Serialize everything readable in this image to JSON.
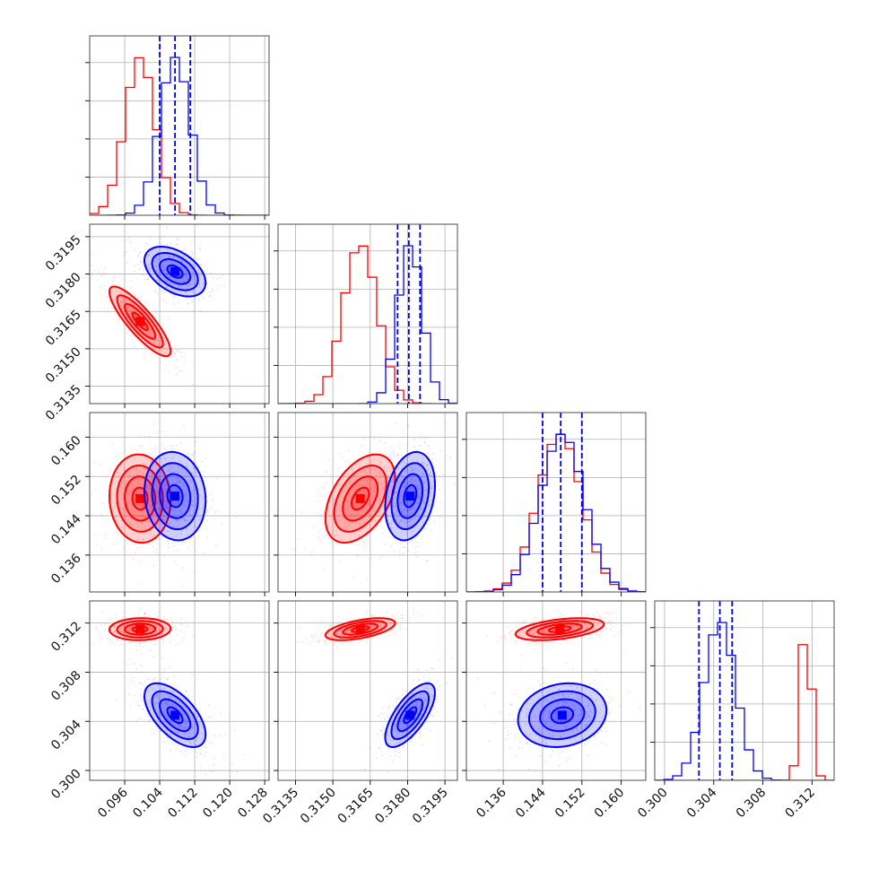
{
  "chart_data": {
    "type": "corner",
    "params": [
      {
        "range": [
          0.088,
          0.129
        ],
        "ticks": [
          "0.096",
          "0.104",
          "0.112",
          "0.120",
          "0.128"
        ]
      },
      {
        "range": [
          0.3128,
          0.32
        ],
        "ticks": [
          "0.3135",
          "0.3150",
          "0.3165",
          "0.3180",
          "0.3195"
        ]
      },
      {
        "range": [
          0.1285,
          0.165
        ],
        "ticks": [
          "0.136",
          "0.144",
          "0.152",
          "0.160"
        ]
      },
      {
        "range": [
          0.2992,
          0.3138
        ],
        "ticks": [
          "0.300",
          "0.304",
          "0.308",
          "0.312"
        ]
      }
    ],
    "series": [
      {
        "color": "#ff0000",
        "mean": [
          0.0995,
          0.3161,
          0.1475,
          0.3115
        ],
        "std": [
          0.0035,
          0.0007,
          0.0045,
          0.00045
        ],
        "corr": [
          [
            0,
            1,
            -0.85
          ],
          [
            0,
            2,
            -0.05
          ],
          [
            0,
            3,
            0.05
          ],
          [
            1,
            2,
            0.45
          ],
          [
            1,
            3,
            0.55
          ],
          [
            2,
            3,
            0.45
          ]
        ]
      },
      {
        "color": "#0000ff",
        "mean": [
          0.1075,
          0.3181,
          0.148,
          0.3045
        ],
        "std": [
          0.0035,
          0.0005,
          0.0045,
          0.0013
        ],
        "corr": [
          [
            0,
            1,
            -0.45
          ],
          [
            0,
            2,
            -0.1
          ],
          [
            0,
            3,
            -0.6
          ],
          [
            1,
            2,
            0.25
          ],
          [
            1,
            3,
            0.7
          ],
          [
            2,
            3,
            0.15
          ]
        ]
      }
    ],
    "quantile_lines": [
      [
        0.104,
        0.1075,
        0.111
      ],
      [
        0.3176,
        0.31805,
        0.3185
      ],
      [
        0.144,
        0.1477,
        0.152
      ],
      [
        0.3028,
        0.3045,
        0.3055
      ]
    ],
    "quantile_color": "#0000dd",
    "grid": true
  }
}
